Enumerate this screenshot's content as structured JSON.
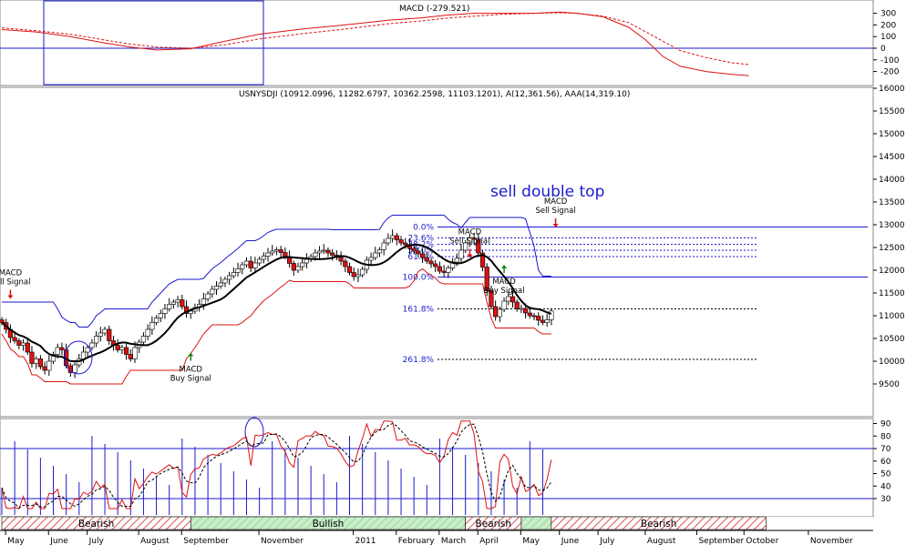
{
  "macd_panel": {
    "title": "MACD (-279.521)",
    "axis_ticks": [
      300,
      200,
      100,
      0,
      -100,
      -200
    ],
    "macd": [
      [
        0,
        160
      ],
      [
        8,
        140
      ],
      [
        16,
        100
      ],
      [
        24,
        45
      ],
      [
        30,
        10
      ],
      [
        36,
        -15
      ],
      [
        44,
        -5
      ],
      [
        52,
        60
      ],
      [
        60,
        120
      ],
      [
        70,
        165
      ],
      [
        80,
        200
      ],
      [
        90,
        240
      ],
      [
        98,
        262
      ],
      [
        104,
        285
      ],
      [
        110,
        300
      ],
      [
        116,
        300
      ],
      [
        124,
        300
      ],
      [
        130,
        310
      ],
      [
        134,
        300
      ],
      [
        140,
        270
      ],
      [
        146,
        180
      ],
      [
        150,
        70
      ],
      [
        154,
        -70
      ],
      [
        158,
        -155
      ],
      [
        164,
        -200
      ],
      [
        170,
        -225
      ],
      [
        174,
        -235
      ]
    ],
    "signal": [
      [
        0,
        175
      ],
      [
        8,
        150
      ],
      [
        16,
        120
      ],
      [
        24,
        70
      ],
      [
        30,
        35
      ],
      [
        36,
        10
      ],
      [
        44,
        0
      ],
      [
        52,
        30
      ],
      [
        60,
        80
      ],
      [
        70,
        125
      ],
      [
        80,
        165
      ],
      [
        90,
        210
      ],
      [
        98,
        235
      ],
      [
        104,
        260
      ],
      [
        110,
        275
      ],
      [
        116,
        290
      ],
      [
        124,
        300
      ],
      [
        130,
        305
      ],
      [
        134,
        300
      ],
      [
        140,
        275
      ],
      [
        146,
        220
      ],
      [
        150,
        140
      ],
      [
        154,
        60
      ],
      [
        158,
        -20
      ],
      [
        164,
        -80
      ],
      [
        170,
        -125
      ],
      [
        174,
        -140
      ]
    ]
  },
  "price_panel": {
    "title": "USNYSDJI (10912.0996, 11282.6797, 10362.2598, 11103.1201), A(12,361.56), AAA(14,319.10)",
    "axis_ticks": [
      16000,
      15500,
      15000,
      14500,
      14000,
      13500,
      13000,
      12500,
      12000,
      11500,
      11000,
      10500,
      10000,
      9500
    ],
    "annotation_main": "sell double top",
    "fib_levels": [
      {
        "label": "0.0%",
        "value": 12950
      },
      {
        "label": "23.6%",
        "value": 12710
      },
      {
        "label": "38.2%",
        "value": 12570
      },
      {
        "label": "50.0%",
        "value": 12440
      },
      {
        "label": "61.8%",
        "value": 12300
      },
      {
        "label": "100.0%",
        "value": 11850
      },
      {
        "label": "161.8%",
        "value": 11150
      },
      {
        "label": "261.8%",
        "value": 10040
      }
    ],
    "signals": [
      {
        "label_line1": "MACD",
        "label_line2": "Sell Signal",
        "type": "sell",
        "week": 2,
        "price": 11330
      },
      {
        "label_line1": "MACD",
        "label_line2": "Buy Signal",
        "type": "buy",
        "week": 44,
        "price": 10250
      },
      {
        "label_line1": "MACD",
        "label_line2": "Sell Signal",
        "type": "sell",
        "week": 109,
        "price": 12230
      },
      {
        "label_line1": "MACD",
        "label_line2": "Buy Signal",
        "type": "buy",
        "week": 117,
        "price": 12180
      },
      {
        "label_line1": "MACD",
        "label_line2": "Sell Signal",
        "type": "sell",
        "week": 129,
        "price": 12900
      }
    ]
  },
  "rsi_panel": {
    "axis_ticks": [
      90,
      80,
      70,
      60,
      50,
      40,
      30
    ]
  },
  "phases": [
    {
      "label": "Bearish",
      "from": 0,
      "to": 44
    },
    {
      "label": "Bullish",
      "from": 44,
      "to": 108
    },
    {
      "label": "Bearish",
      "from": 108,
      "to": 121
    },
    {
      "label": "",
      "from": 121,
      "to": 128
    },
    {
      "label": "Bearish",
      "from": 128,
      "to": 178
    }
  ],
  "x_axis_labels": [
    "May",
    "June",
    "July",
    "August",
    "September",
    "November",
    "2011",
    "February",
    "March",
    "April",
    "May",
    "June",
    "July",
    "August",
    "September",
    "October",
    "November"
  ],
  "colors": {
    "price_line": "#1a1ad0",
    "red": "#dd1111",
    "ma": "#000000",
    "bearish_hatch": "#e05050",
    "bullish_fill": "#b8e8b8"
  },
  "chart_data": {
    "type": "candlestick",
    "title": "USNYSDJI (10912.0996, 11282.6797, 10362.2598, 11103.1201), A(12,361.56), AAA(14,319.10)",
    "ylim": [
      9200,
      16200
    ],
    "weekly_close": [
      10850,
      10700,
      10520,
      10450,
      10350,
      10400,
      10200,
      9950,
      10050,
      9880,
      9800,
      10000,
      10150,
      10300,
      10250,
      9900,
      9750,
      9920,
      10050,
      10200,
      10300,
      10400,
      10550,
      10620,
      10700,
      10450,
      10350,
      10250,
      10300,
      10150,
      10050,
      10300,
      10420,
      10550,
      10700,
      10850,
      10950,
      11050,
      11150,
      11250,
      11300,
      11350,
      11200,
      11050,
      11100,
      11180,
      11250,
      11370,
      11480,
      11580,
      11650,
      11720,
      11800,
      11880,
      11950,
      12030,
      12120,
      12200,
      12050,
      12160,
      12240,
      12310,
      12380,
      12420,
      12450,
      12390,
      12300,
      12150,
      12000,
      12080,
      12160,
      12240,
      12300,
      12380,
      12420,
      12440,
      12380,
      12330,
      12280,
      12200,
      12080,
      11950,
      11860,
      11900,
      12020,
      12220,
      12280,
      12380,
      12450,
      12600,
      12700,
      12760,
      12670,
      12600,
      12560,
      12480,
      12420,
      12360,
      12280,
      12200,
      12140,
      12080,
      11980,
      11950,
      12050,
      12180,
      12260,
      12440,
      12600,
      12710,
      12680,
      12380,
      12070,
      11550,
      11200,
      10980,
      11140,
      11320,
      11420,
      11300,
      11150,
      11160,
      11060,
      11000,
      10990,
      10900,
      10850,
      10910,
      11103
    ],
    "moving_average_label": "",
    "fib_retracement": {
      "high": 12950,
      "low": 11850
    }
  }
}
